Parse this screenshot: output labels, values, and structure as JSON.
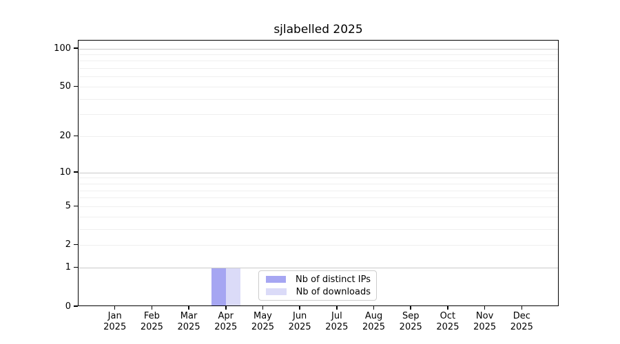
{
  "chart_data": {
    "type": "bar",
    "title": "sjlabelled 2025",
    "categories": [
      "Jan",
      "Feb",
      "Mar",
      "Apr",
      "May",
      "Jun",
      "Jul",
      "Aug",
      "Sep",
      "Oct",
      "Nov",
      "Dec"
    ],
    "category_sublabel": "2025",
    "series": [
      {
        "name": "Nb of distinct IPs",
        "color": "#a6a6f2",
        "values": [
          0,
          0,
          0,
          1,
          0,
          0,
          0,
          0,
          0,
          0,
          0,
          0
        ]
      },
      {
        "name": "Nb of downloads",
        "color": "#dbdbf8",
        "values": [
          0,
          0,
          0,
          1,
          0,
          0,
          0,
          0,
          0,
          0,
          0,
          0
        ]
      }
    ],
    "y_scale": "log1p",
    "y_max": 100,
    "y_ticks": [
      0,
      1,
      2,
      5,
      10,
      20,
      50,
      100
    ],
    "y_gridlines_major": [
      1,
      10,
      100
    ],
    "y_gridlines_minor": [
      2,
      3,
      4,
      5,
      6,
      7,
      8,
      9,
      20,
      30,
      40,
      50,
      60,
      70,
      80,
      90
    ],
    "grid": true,
    "legend_position": "bottom-center",
    "colors": {
      "spine": "#000000",
      "grid_major": "#c9c9c9",
      "grid_minor": "#efefef",
      "background": "#ffffff",
      "text": "#000000"
    }
  }
}
